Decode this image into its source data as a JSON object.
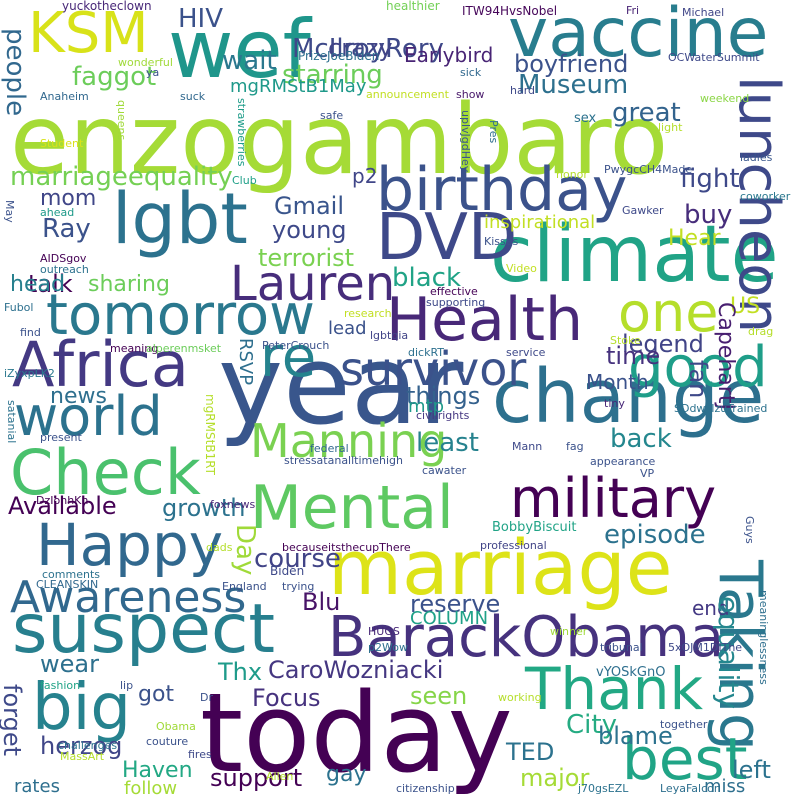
{
  "words": [
    {
      "text": "enzogambaro",
      "color": "#a5db36"
    },
    {
      "text": "year",
      "color": "#39568c"
    },
    {
      "text": "today",
      "color": "#440154"
    },
    {
      "text": "wef",
      "color": "#1f968b"
    },
    {
      "text": "vaccine",
      "color": "#287d8e"
    },
    {
      "text": "climate",
      "color": "#20a386"
    },
    {
      "text": "change",
      "color": "#2d708e"
    },
    {
      "text": "marriage",
      "color": "#dde318"
    },
    {
      "text": "suspect",
      "color": "#277f8e"
    },
    {
      "text": "birthday",
      "color": "#3b528b"
    },
    {
      "text": "lgbt",
      "color": "#2c728e"
    },
    {
      "text": "DVD",
      "color": "#3e4989"
    },
    {
      "text": "KSM",
      "color": "#d8e219"
    },
    {
      "text": "Health",
      "color": "#482878"
    },
    {
      "text": "Africa",
      "color": "#443983"
    },
    {
      "text": "tomorrow",
      "color": "#2a788e"
    },
    {
      "text": "Check",
      "color": "#4ac16d"
    },
    {
      "text": "Mental",
      "color": "#5ec962"
    },
    {
      "text": "military",
      "color": "#440154"
    },
    {
      "text": "BarackObama",
      "color": "#46327e"
    },
    {
      "text": "Thank",
      "color": "#22a884"
    },
    {
      "text": "Taking",
      "color": "#2a788e"
    },
    {
      "text": "best",
      "color": "#20a486"
    },
    {
      "text": "Happy",
      "color": "#31688e"
    },
    {
      "text": "world",
      "color": "#2c728e"
    },
    {
      "text": "big",
      "color": "#26828e"
    },
    {
      "text": "good",
      "color": "#1f9e89"
    },
    {
      "text": "survivor",
      "color": "#3b528b"
    },
    {
      "text": "Awareness",
      "color": "#31688e"
    },
    {
      "text": "luncheon",
      "color": "#3e4989"
    },
    {
      "text": "one",
      "color": "#b5de2b"
    },
    {
      "text": "Lauren",
      "color": "#472d7b"
    },
    {
      "text": "Manning",
      "color": "#7ad151"
    },
    {
      "text": "re",
      "color": "#25838e"
    },
    {
      "text": "people",
      "color": "#31688e"
    },
    {
      "text": "HIV",
      "color": "#3b528b"
    },
    {
      "text": "wait",
      "color": "#2a788e"
    },
    {
      "text": "McIlroyRory",
      "color": "#3e4989"
    },
    {
      "text": "crazy",
      "color": "#414487"
    },
    {
      "text": "Earlybird",
      "color": "#482475"
    },
    {
      "text": "boyfriend",
      "color": "#3b528b"
    },
    {
      "text": "starring",
      "color": "#6ccd5a"
    },
    {
      "text": "faggot",
      "color": "#6ccd5a"
    },
    {
      "text": "mgRMStB1May",
      "color": "#1f998a"
    },
    {
      "text": "Museum",
      "color": "#2d708e"
    },
    {
      "text": "great",
      "color": "#33638d"
    },
    {
      "text": "marriageequality",
      "color": "#75d054"
    },
    {
      "text": "fight",
      "color": "#3e4989"
    },
    {
      "text": "mom",
      "color": "#404688"
    },
    {
      "text": "Gmail",
      "color": "#39558c"
    },
    {
      "text": "p2",
      "color": "#404688"
    },
    {
      "text": "Ray",
      "color": "#3b528b"
    },
    {
      "text": "young",
      "color": "#3e4989"
    },
    {
      "text": "buy",
      "color": "#472d7b"
    },
    {
      "text": "terrorist",
      "color": "#7ad151"
    },
    {
      "text": "inspirational",
      "color": "#c2df23"
    },
    {
      "text": "Hear",
      "color": "#c2df23"
    },
    {
      "text": "talk",
      "color": "#440154"
    },
    {
      "text": "head",
      "color": "#27808e"
    },
    {
      "text": "sharing",
      "color": "#6ccd5a"
    },
    {
      "text": "black",
      "color": "#20a386"
    },
    {
      "text": "US",
      "color": "#c2df23"
    },
    {
      "text": "lead",
      "color": "#3b528b"
    },
    {
      "text": "legend",
      "color": "#414487"
    },
    {
      "text": "time",
      "color": "#46327e"
    },
    {
      "text": "CapehartJ",
      "color": "#481f70"
    },
    {
      "text": "fan",
      "color": "#3e4989"
    },
    {
      "text": "RSVP",
      "color": "#2e6f8e"
    },
    {
      "text": "news",
      "color": "#2e6f8e"
    },
    {
      "text": "things",
      "color": "#34618d"
    },
    {
      "text": "Month",
      "color": "#3b528b"
    },
    {
      "text": "least",
      "color": "#26828e"
    },
    {
      "text": "mtp",
      "color": "#1f9a8a"
    },
    {
      "text": "back",
      "color": "#24878e"
    },
    {
      "text": "Available",
      "color": "#440154"
    },
    {
      "text": "growth",
      "color": "#2c728e"
    },
    {
      "text": "Day",
      "color": "#a0da39"
    },
    {
      "text": "episode",
      "color": "#2c728e"
    },
    {
      "text": "course",
      "color": "#414487"
    },
    {
      "text": "Blu",
      "color": "#481467"
    },
    {
      "text": "reserve",
      "color": "#3b528b"
    },
    {
      "text": "COLUMN",
      "color": "#1fa188"
    },
    {
      "text": "end",
      "color": "#443983"
    },
    {
      "text": "equality",
      "color": "#24878e"
    },
    {
      "text": "forget",
      "color": "#3e4989"
    },
    {
      "text": "wear",
      "color": "#2d708e"
    },
    {
      "text": "Thx",
      "color": "#1e9b8a"
    },
    {
      "text": "CaroWozniacki",
      "color": "#453781"
    },
    {
      "text": "got",
      "color": "#3b528b"
    },
    {
      "text": "Focus",
      "color": "#46327e"
    },
    {
      "text": "seen",
      "color": "#86d549"
    },
    {
      "text": "TED",
      "color": "#2c728e"
    },
    {
      "text": "City",
      "color": "#25ab82"
    },
    {
      "text": "blame",
      "color": "#2c728e"
    },
    {
      "text": "left",
      "color": "#2c728e"
    },
    {
      "text": "herzog",
      "color": "#404688"
    },
    {
      "text": "Haven",
      "color": "#22a884"
    },
    {
      "text": "support",
      "color": "#440154"
    },
    {
      "text": "gay",
      "color": "#2c728e"
    },
    {
      "text": "major",
      "color": "#a5db36"
    },
    {
      "text": "miss",
      "color": "#2e6f8e"
    },
    {
      "text": "follow",
      "color": "#a5db36"
    },
    {
      "text": "rates",
      "color": "#2e6f8e"
    },
    {
      "text": "yuckotheclown",
      "color": "#482878"
    },
    {
      "text": "healthier",
      "color": "#73d056"
    },
    {
      "text": "ITW94HvsNobel",
      "color": "#450559"
    },
    {
      "text": "Fri",
      "color": "#482475"
    },
    {
      "text": "Michael",
      "color": "#404688"
    },
    {
      "text": "PrizeJoeBiden",
      "color": "#2e6f8e"
    },
    {
      "text": "OCWaterSummit",
      "color": "#3e4989"
    },
    {
      "text": "wonderful",
      "color": "#a0da39"
    },
    {
      "text": "ya",
      "color": "#3b528b"
    },
    {
      "text": "sick",
      "color": "#31688e"
    },
    {
      "text": "Anaheim",
      "color": "#31688e"
    },
    {
      "text": "suck",
      "color": "#31688e"
    },
    {
      "text": "announcement",
      "color": "#c2df23"
    },
    {
      "text": "show",
      "color": "#48186a"
    },
    {
      "text": "hard",
      "color": "#3e4989"
    },
    {
      "text": "weekend",
      "color": "#8bd646"
    },
    {
      "text": "light",
      "color": "#b5de2b"
    },
    {
      "text": "uplvJgdHey",
      "color": "#39568c"
    },
    {
      "text": "Pres",
      "color": "#2e6f8e"
    },
    {
      "text": "queens",
      "color": "#a0da39"
    },
    {
      "text": "strawberries",
      "color": "#1e9c89"
    },
    {
      "text": "Student",
      "color": "#d8e219"
    },
    {
      "text": "honor",
      "color": "#b5de2b"
    },
    {
      "text": "ladies",
      "color": "#39568c"
    },
    {
      "text": "PwygcCH4Made",
      "color": "#3b528b"
    },
    {
      "text": "Club",
      "color": "#1fa088"
    },
    {
      "text": "coworker",
      "color": "#2a788e"
    },
    {
      "text": "Gawker",
      "color": "#3e4989"
    },
    {
      "text": "May",
      "color": "#3b528b"
    },
    {
      "text": "ahead",
      "color": "#1f9a8a"
    },
    {
      "text": "Kisses",
      "color": "#3b528b"
    },
    {
      "text": "AIDSgov",
      "color": "#440154"
    },
    {
      "text": "Video",
      "color": "#c2df23"
    },
    {
      "text": "outreach",
      "color": "#2c728e"
    },
    {
      "text": "effective",
      "color": "#440154"
    },
    {
      "text": "supporting",
      "color": "#3e4989"
    },
    {
      "text": "Fubol",
      "color": "#2d708e"
    },
    {
      "text": "research",
      "color": "#c2df23"
    },
    {
      "text": "drag",
      "color": "#b5de2b"
    },
    {
      "text": "find",
      "color": "#3b528b"
    },
    {
      "text": "lgbtqia",
      "color": "#414487"
    },
    {
      "text": "Stoke",
      "color": "#b5de2b"
    },
    {
      "text": "PeterCrouch",
      "color": "#3b528b"
    },
    {
      "text": "meaning",
      "color": "#440154"
    },
    {
      "text": "alperenmsket",
      "color": "#6ccd5a"
    },
    {
      "text": "dickRT",
      "color": "#2d708e"
    },
    {
      "text": "service",
      "color": "#3e4989"
    },
    {
      "text": "iZyxpLK2",
      "color": "#2a788e"
    },
    {
      "text": "tiny",
      "color": "#482878"
    },
    {
      "text": "SDdwzIzuTrained",
      "color": "#2c728e"
    },
    {
      "text": "civilrights",
      "color": "#453781"
    },
    {
      "text": "satanial",
      "color": "#2c728e"
    },
    {
      "text": "present",
      "color": "#3b528b"
    },
    {
      "text": "Mann",
      "color": "#3e4989"
    },
    {
      "text": "fag",
      "color": "#3b528b"
    },
    {
      "text": "appearance",
      "color": "#3b528b"
    },
    {
      "text": "federal",
      "color": "#31688e"
    },
    {
      "text": "stressatanalltimehigh",
      "color": "#3b528b"
    },
    {
      "text": "mgRMStB1RT",
      "color": "#b5de2b"
    },
    {
      "text": "cawater",
      "color": "#3b528b"
    },
    {
      "text": "VP",
      "color": "#3b528b"
    },
    {
      "text": "DzIonhKh",
      "color": "#440154"
    },
    {
      "text": "foxnews",
      "color": "#482878"
    },
    {
      "text": "BobbyBiscuit",
      "color": "#20a386"
    },
    {
      "text": "professional",
      "color": "#414487"
    },
    {
      "text": "becauseitsthecupThere",
      "color": "#440154"
    },
    {
      "text": "dads",
      "color": "#b5de2b"
    },
    {
      "text": "comments",
      "color": "#2c728e"
    },
    {
      "text": "Biden",
      "color": "#3e4989"
    },
    {
      "text": "Guys",
      "color": "#3b528b"
    },
    {
      "text": "meaninglessness",
      "color": "#2e6f8e"
    },
    {
      "text": "CLEANSKIN",
      "color": "#31688e"
    },
    {
      "text": "England",
      "color": "#3b528b"
    },
    {
      "text": "trying",
      "color": "#3b528b"
    },
    {
      "text": "HUGS",
      "color": "#482878"
    },
    {
      "text": "winner",
      "color": "#a0da39"
    },
    {
      "text": "p2Wow",
      "color": "#2d708e"
    },
    {
      "text": "5xOJM1DIThe",
      "color": "#3e4989"
    },
    {
      "text": "tribunal",
      "color": "#3b528b"
    },
    {
      "text": "vYOSkGnO",
      "color": "#2e6f8e"
    },
    {
      "text": "fashion",
      "color": "#20a386"
    },
    {
      "text": "lip",
      "color": "#3b528b"
    },
    {
      "text": "working",
      "color": "#b5de2b"
    },
    {
      "text": "Obama",
      "color": "#a0da39"
    },
    {
      "text": "Dr",
      "color": "#3b528b"
    },
    {
      "text": "couture",
      "color": "#3b528b"
    },
    {
      "text": "challenges",
      "color": "#2c728e"
    },
    {
      "text": "fires",
      "color": "#3e4989"
    },
    {
      "text": "together",
      "color": "#3b528b"
    },
    {
      "text": "MassArt",
      "color": "#b5de2b"
    },
    {
      "text": "Allen",
      "color": "#b5de2b"
    },
    {
      "text": "citizenship",
      "color": "#3b528b"
    },
    {
      "text": "j70gsEZL",
      "color": "#2c728e"
    },
    {
      "text": "LeyaFalcon",
      "color": "#2e6f8e"
    },
    {
      "text": "safe",
      "color": "#3b528b"
    },
    {
      "text": "sex",
      "color": "#2c728e"
    }
  ]
}
